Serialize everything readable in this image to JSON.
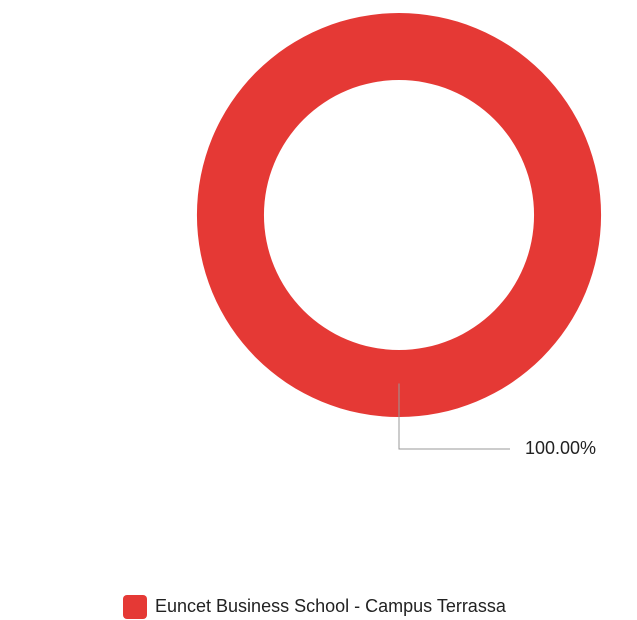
{
  "chart_data": {
    "type": "donut",
    "categories": [
      "Euncet Business School - Campus Terrassa"
    ],
    "values": [
      100
    ],
    "value_labels": [
      "100.00%"
    ],
    "colors": [
      "#e53935"
    ]
  }
}
